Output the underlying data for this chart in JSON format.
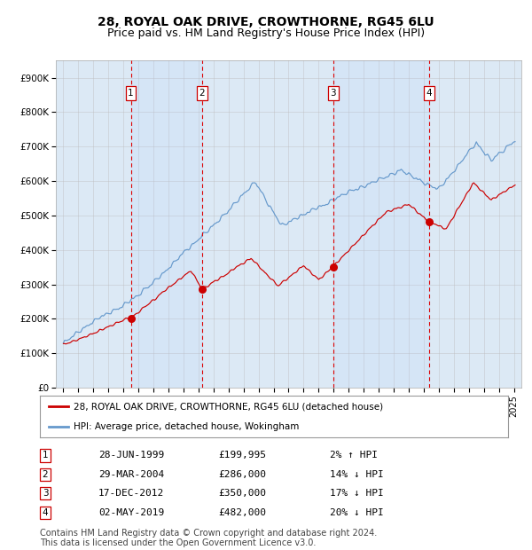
{
  "title": "28, ROYAL OAK DRIVE, CROWTHORNE, RG45 6LU",
  "subtitle": "Price paid vs. HM Land Registry's House Price Index (HPI)",
  "title_fontsize": 10,
  "subtitle_fontsize": 9,
  "bg_color": "#dce9f5",
  "sale_dates": [
    1999.49,
    2004.24,
    2012.96,
    2019.34
  ],
  "sale_prices": [
    199995,
    286000,
    350000,
    482000
  ],
  "sale_labels": [
    "1",
    "2",
    "3",
    "4"
  ],
  "sale_label_notes": [
    {
      "num": "1",
      "date": "28-JUN-1999",
      "price": "£199,995",
      "pct": "2%",
      "dir": "↑"
    },
    {
      "num": "2",
      "date": "29-MAR-2004",
      "price": "£286,000",
      "pct": "14%",
      "dir": "↓"
    },
    {
      "num": "3",
      "date": "17-DEC-2012",
      "price": "£350,000",
      "pct": "17%",
      "dir": "↓"
    },
    {
      "num": "4",
      "date": "02-MAY-2019",
      "price": "£482,000",
      "pct": "20%",
      "dir": "↓"
    }
  ],
  "red_line_color": "#cc0000",
  "blue_line_color": "#6699cc",
  "dashed_vline_color": "#dd0000",
  "grid_color": "#bbbbbb",
  "ylim": [
    0,
    950000
  ],
  "yticks": [
    0,
    100000,
    200000,
    300000,
    400000,
    500000,
    600000,
    700000,
    800000,
    900000
  ],
  "ytick_labels": [
    "£0",
    "£100K",
    "£200K",
    "£300K",
    "£400K",
    "£500K",
    "£600K",
    "£700K",
    "£800K",
    "£900K"
  ],
  "xlim_start": 1994.5,
  "xlim_end": 2025.5,
  "xticks": [
    1995,
    1996,
    1997,
    1998,
    1999,
    2000,
    2001,
    2002,
    2003,
    2004,
    2005,
    2006,
    2007,
    2008,
    2009,
    2010,
    2011,
    2012,
    2013,
    2014,
    2015,
    2016,
    2017,
    2018,
    2019,
    2020,
    2021,
    2022,
    2023,
    2024,
    2025
  ],
  "legend_labels": [
    "28, ROYAL OAK DRIVE, CROWTHORNE, RG45 6LU (detached house)",
    "HPI: Average price, detached house, Wokingham"
  ],
  "footer": "Contains HM Land Registry data © Crown copyright and database right 2024.\nThis data is licensed under the Open Government Licence v3.0.",
  "footer_fontsize": 7
}
